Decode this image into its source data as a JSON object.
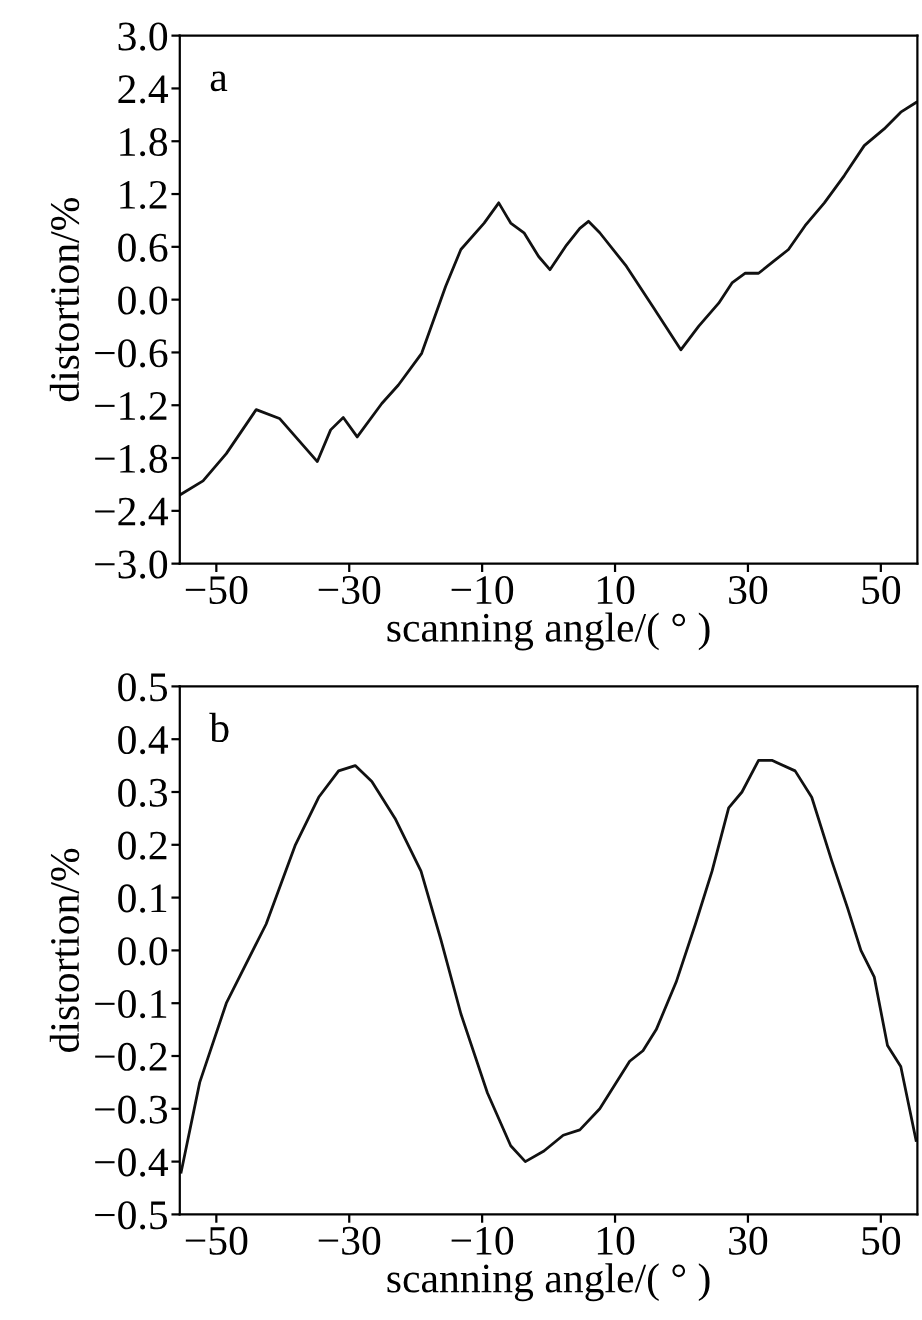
{
  "chart_data": [
    {
      "type": "line",
      "xlabel": "scanning angle/( ° )",
      "ylabel": "distortion/%",
      "annotations": [
        "a"
      ],
      "xlim": [
        -55.5,
        55.5
      ],
      "ylim": [
        -3.0,
        3.0
      ],
      "xticks": [
        {
          "value": -50,
          "label": "−50"
        },
        {
          "value": -30,
          "label": "−30"
        },
        {
          "value": -10,
          "label": "−10"
        },
        10,
        30,
        50
      ],
      "yticks": [
        {
          "value": -3.0,
          "label": "−3.0"
        },
        {
          "value": -2.4,
          "label": "−2.4"
        },
        {
          "value": -1.8,
          "label": "−1.8"
        },
        {
          "value": -1.2,
          "label": "−1.2"
        },
        {
          "value": -0.6,
          "label": "−0.6"
        },
        {
          "value": 0.0,
          "label": "0.0"
        },
        {
          "value": 0.6,
          "label": "0.6"
        },
        {
          "value": 1.2,
          "label": "1.2"
        },
        {
          "value": 1.8,
          "label": "1.8"
        },
        {
          "value": 2.4,
          "label": "2.4"
        },
        {
          "value": 3.0,
          "label": "3.0"
        }
      ],
      "grid": false,
      "line_style": "solid",
      "marker": "none",
      "series": [
        {
          "color": "#111111",
          "x": [
            -55.5,
            -52,
            -48.5,
            -44,
            -40.5,
            -34.8,
            -32.8,
            -30.9,
            -28.8,
            -25.1,
            -22.6,
            -19.1,
            -15.5,
            -13.2,
            -9.7,
            -7.5,
            -5.7,
            -3.7,
            -1.5,
            0.2,
            2.7,
            4.7,
            6.0,
            7.7,
            11.7,
            15.7,
            19.9,
            22.6,
            25.6,
            27.6,
            29.6,
            31.6,
            33.6,
            36.1,
            38.6,
            41.5,
            44.5,
            47.5,
            50.5,
            53,
            55.3
          ],
          "values": [
            -2.22,
            -2.06,
            -1.75,
            -1.25,
            -1.35,
            -1.84,
            -1.48,
            -1.34,
            -1.56,
            -1.18,
            -0.97,
            -0.61,
            0.15,
            0.57,
            0.87,
            1.1,
            0.87,
            0.76,
            0.49,
            0.34,
            0.62,
            0.81,
            0.89,
            0.76,
            0.38,
            -0.08,
            -0.57,
            -0.3,
            -0.04,
            0.19,
            0.3,
            0.3,
            0.42,
            0.57,
            0.84,
            1.1,
            1.41,
            1.75,
            1.94,
            2.13,
            2.24
          ]
        }
      ]
    },
    {
      "type": "line",
      "xlabel": "scanning angle/( ° )",
      "ylabel": "distortion/%",
      "annotations": [
        "b"
      ],
      "xlim": [
        -55.5,
        55.5
      ],
      "ylim": [
        -0.5,
        0.5
      ],
      "xticks": [
        {
          "value": -50,
          "label": "−50"
        },
        {
          "value": -30,
          "label": "−30"
        },
        {
          "value": -10,
          "label": "−10"
        },
        10,
        30,
        50
      ],
      "yticks": [
        {
          "value": -0.5,
          "label": "−0.5"
        },
        {
          "value": -0.4,
          "label": "−0.4"
        },
        {
          "value": -0.3,
          "label": "−0.3"
        },
        {
          "value": -0.2,
          "label": "−0.2"
        },
        {
          "value": -0.1,
          "label": "−0.1"
        },
        {
          "value": 0.0,
          "label": "0.0"
        },
        {
          "value": 0.1,
          "label": "0.1"
        },
        {
          "value": 0.2,
          "label": "0.2"
        },
        {
          "value": 0.3,
          "label": "0.3"
        },
        {
          "value": 0.4,
          "label": "0.4"
        },
        {
          "value": 0.5,
          "label": "0.5"
        }
      ],
      "grid": false,
      "line_style": "solid",
      "marker": "none",
      "series": [
        {
          "color": "#111111",
          "x": [
            -55.3,
            -52.5,
            -48.5,
            -42.5,
            -38.1,
            -34.6,
            -31.6,
            -29.1,
            -26.6,
            -23.1,
            -19.2,
            -16.2,
            -13.2,
            -9.2,
            -5.7,
            -3.5,
            -0.7,
            2.2,
            4.7,
            7.7,
            12.2,
            14.2,
            16.2,
            19.2,
            22.1,
            24.6,
            27.1,
            29.1,
            31.6,
            33.6,
            37.1,
            39.6,
            42.6,
            45.0,
            47.0,
            49.0,
            51.0,
            53.0,
            55.3
          ],
          "values": [
            -0.42,
            -0.25,
            -0.1,
            0.05,
            0.2,
            0.29,
            0.34,
            0.35,
            0.32,
            0.25,
            0.15,
            0.02,
            -0.12,
            -0.27,
            -0.37,
            -0.4,
            -0.38,
            -0.35,
            -0.34,
            -0.3,
            -0.21,
            -0.19,
            -0.15,
            -0.06,
            0.05,
            0.15,
            0.27,
            0.3,
            0.36,
            0.36,
            0.34,
            0.29,
            0.17,
            0.08,
            0.0,
            -0.05,
            -0.18,
            -0.22,
            -0.36
          ]
        }
      ]
    }
  ]
}
